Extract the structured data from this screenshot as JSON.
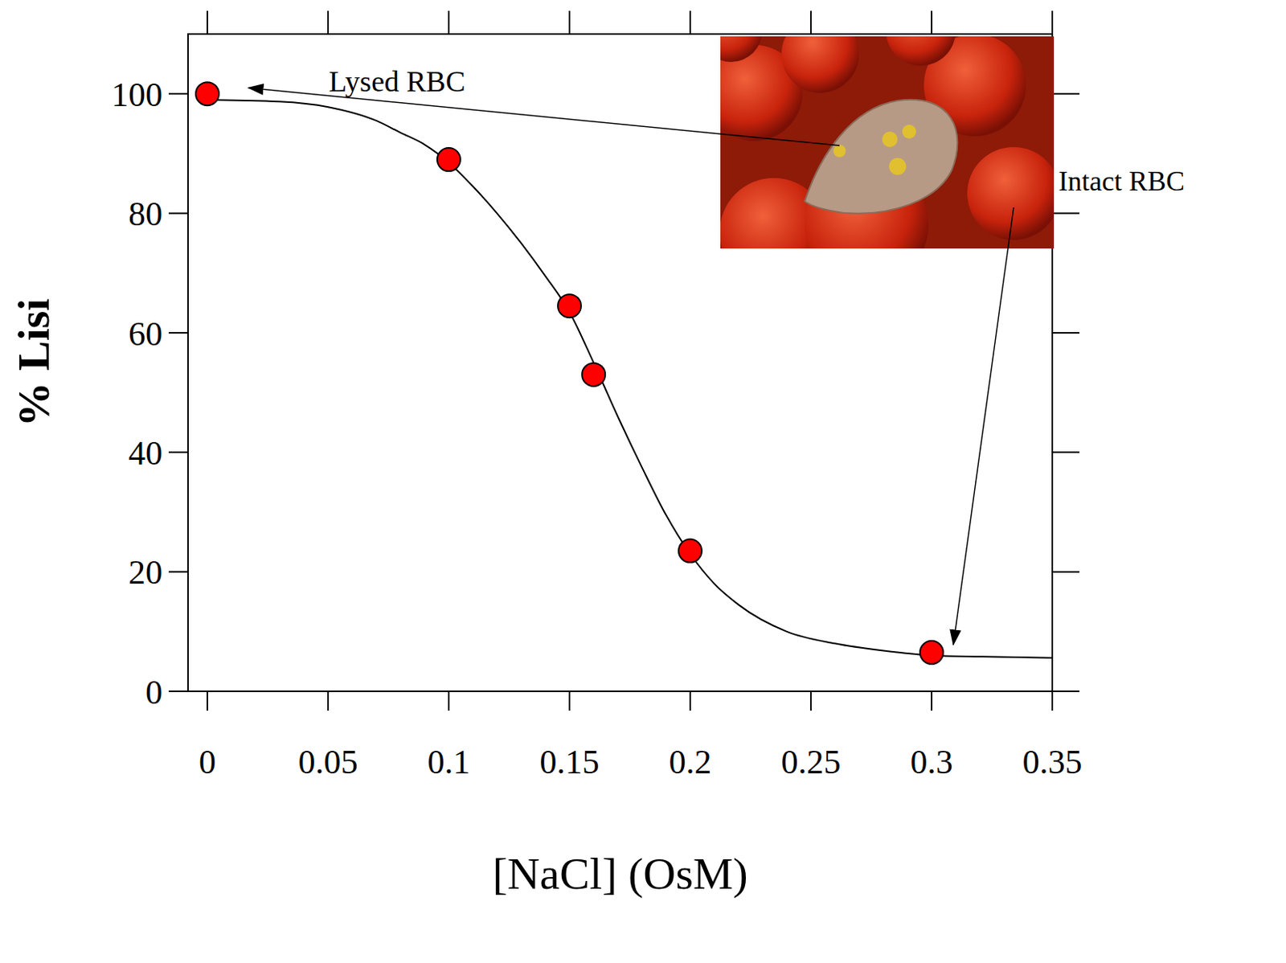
{
  "chart_data": {
    "type": "scatter",
    "x_label": "[NaCl] (OsM)",
    "y_label": "% Lisi",
    "x": [
      0,
      0.1,
      0.15,
      0.16,
      0.2,
      0.3
    ],
    "values": [
      100,
      89,
      64.5,
      53,
      23.5,
      6.5
    ],
    "color": "#ff0000",
    "marker": "circle",
    "fit": {
      "type": "line",
      "color": "#000000",
      "line_style": "solid",
      "x": [
        0,
        0.03,
        0.05,
        0.07,
        0.08,
        0.09,
        0.1,
        0.11,
        0.12,
        0.13,
        0.14,
        0.15,
        0.16,
        0.17,
        0.18,
        0.19,
        0.2,
        0.21,
        0.22,
        0.24,
        0.26,
        0.28,
        0.3,
        0.32,
        0.35
      ],
      "values": [
        99,
        98.7,
        97.8,
        95.5,
        93.5,
        91.5,
        88.5,
        84.5,
        80,
        75,
        69.5,
        63.5,
        55,
        46,
        37.5,
        29.5,
        23,
        18,
        14.5,
        10,
        8,
        6.8,
        6,
        5.8,
        5.6
      ]
    },
    "xlim": [
      -0.008,
      0.35
    ],
    "ylim": [
      0,
      110
    ],
    "xticks": [
      0,
      0.05,
      0.1,
      0.15,
      0.2,
      0.25,
      0.3,
      0.35
    ],
    "yticks": [
      0,
      20,
      40,
      60,
      80,
      100
    ],
    "grid": false,
    "annotations": [
      {
        "text": "Lysed RBC",
        "x": 0.017,
        "y": 101
      },
      {
        "text": "Intact RBC",
        "x": 0.309,
        "y": 7.8
      }
    ]
  }
}
